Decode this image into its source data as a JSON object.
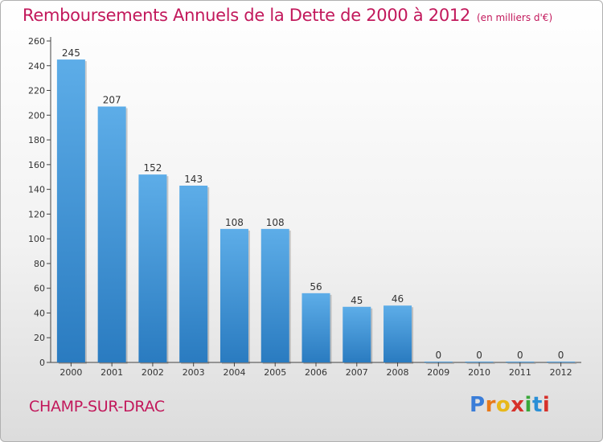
{
  "header": {
    "title": "Remboursements Annuels de la Dette de 2000 à 2012",
    "subtitle": "(en milliers d'€)"
  },
  "footer": {
    "commune": "CHAMP-SUR-DRAC",
    "brand": "Proxiti"
  },
  "colors": {
    "title": "#c2185b",
    "bar_top": "#5dade8",
    "bar_bottom": "#2a7bc0",
    "logo_letters": [
      "#3a7dd8",
      "#e8791a",
      "#e8b81a",
      "#d6312b",
      "#3aa83a",
      "#2a8fd6",
      "#d6312b"
    ]
  },
  "chart_data": {
    "type": "bar",
    "title": "Remboursements Annuels de la Dette de 2000 à 2012",
    "subtitle": "(en milliers d'€)",
    "categories": [
      "2000",
      "2001",
      "2002",
      "2003",
      "2004",
      "2005",
      "2006",
      "2007",
      "2008",
      "2009",
      "2010",
      "2011",
      "2012"
    ],
    "values": [
      245,
      207,
      152,
      143,
      108,
      108,
      56,
      45,
      46,
      0,
      0,
      0,
      0
    ],
    "value_labels": [
      "245",
      "207",
      "152",
      "143",
      "108",
      "108",
      "56",
      "45",
      "46",
      "0",
      "0",
      "0",
      "0"
    ],
    "yticks": [
      0,
      20,
      40,
      60,
      80,
      100,
      120,
      140,
      160,
      180,
      200,
      220,
      240,
      260
    ],
    "ylim": [
      0,
      260
    ],
    "grid": false,
    "legend": "none"
  }
}
